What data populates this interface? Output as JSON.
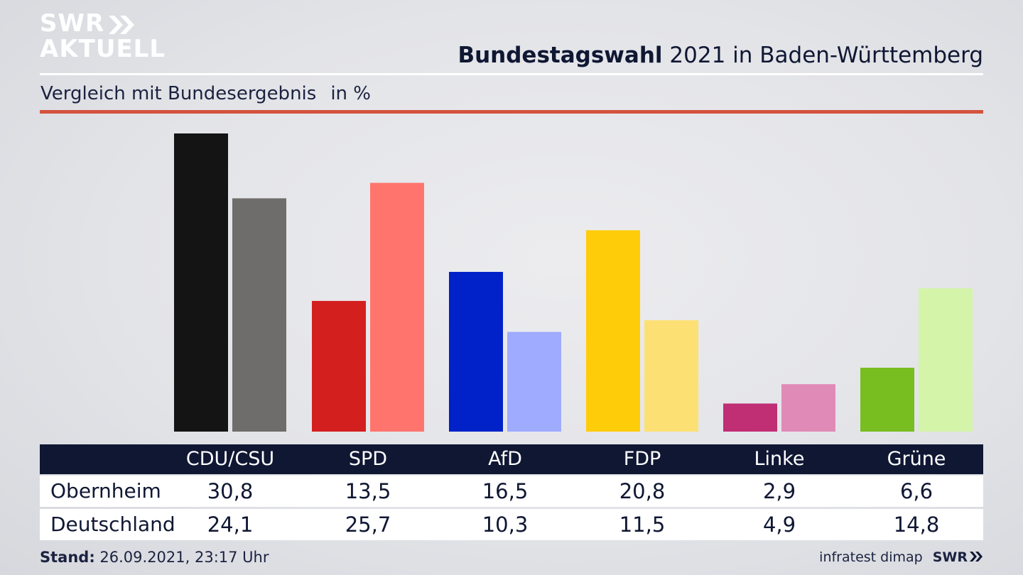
{
  "brand": {
    "logo_line1": "SWR",
    "logo_line2": "AKTUELL",
    "footer_brand": "SWR"
  },
  "header": {
    "title_bold": "Bundestagswahl",
    "title_rest": " 2021 in Baden-Württemberg",
    "subtitle": "Vergleich mit Bundesergebnis",
    "unit": "in %"
  },
  "footer": {
    "stand_label": "Stand:",
    "stand_value": " 26.09.2021, 23:17 Uhr",
    "source": "infratest dimap"
  },
  "colors": {
    "navy": "#0f1733",
    "accent_red": "#d4523f"
  },
  "chart_data": {
    "type": "bar",
    "categories": [
      "CDU/CSU",
      "SPD",
      "AfD",
      "FDP",
      "Linke",
      "Grüne"
    ],
    "series": [
      {
        "name": "Obernheim",
        "values": [
          30.8,
          13.5,
          16.5,
          20.8,
          2.9,
          6.6
        ],
        "labels": [
          "30,8",
          "13,5",
          "16,5",
          "20,8",
          "2,9",
          "6,6"
        ],
        "colors": [
          "#141414",
          "#d41f1f",
          "#0022c8",
          "#ffcc0a",
          "#c02e74",
          "#78be21"
        ]
      },
      {
        "name": "Deutschland",
        "values": [
          24.1,
          25.7,
          10.3,
          11.5,
          4.9,
          14.8
        ],
        "labels": [
          "24,1",
          "25,7",
          "10,3",
          "11,5",
          "4,9",
          "14,8"
        ],
        "colors": [
          "#6f6d6b",
          "#ff756e",
          "#9eabff",
          "#fde073",
          "#e08ab7",
          "#d4f4a9"
        ]
      }
    ],
    "ylim": [
      0,
      31
    ]
  }
}
